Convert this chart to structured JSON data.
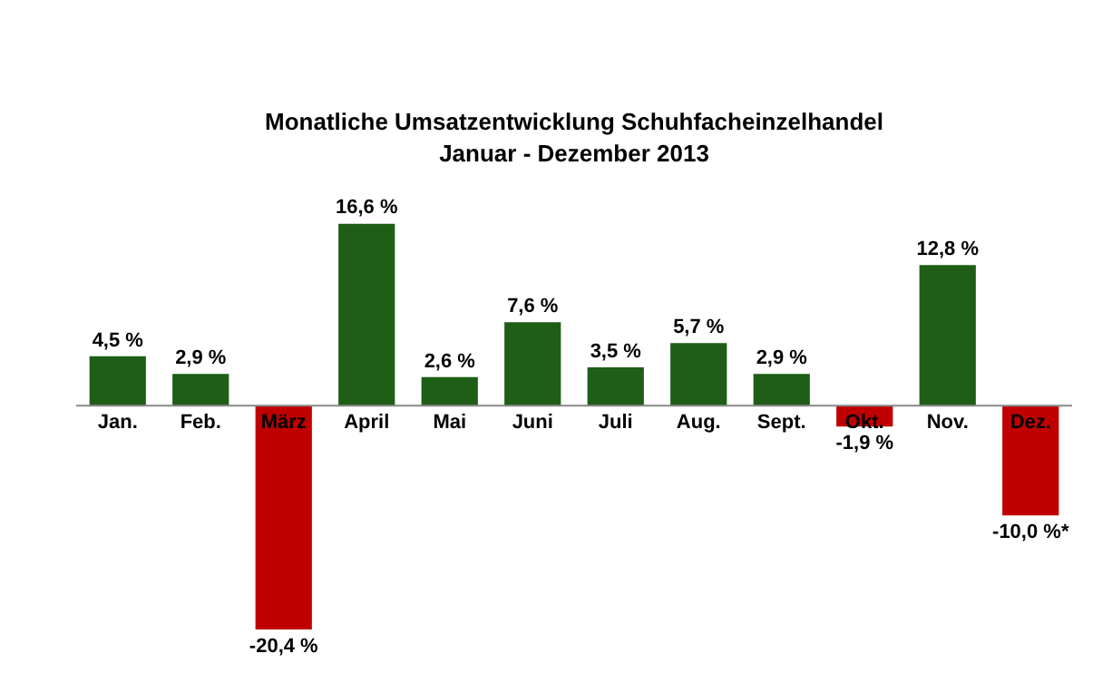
{
  "chart_data": {
    "type": "bar",
    "title": "Monatliche Umsatzentwicklung Schuhfacheinzelhandel",
    "subtitle": "Januar - Dezember 2013",
    "categories": [
      "Jan.",
      "Feb.",
      "März",
      "April",
      "Mai",
      "Juni",
      "Juli",
      "Aug.",
      "Sept.",
      "Okt.",
      "Nov.",
      "Dez."
    ],
    "values": [
      4.5,
      2.9,
      -20.4,
      16.6,
      2.6,
      7.6,
      3.5,
      5.7,
      2.9,
      -1.9,
      12.8,
      -10.0
    ],
    "colors": [
      "#1e5e16",
      "#1e5e16",
      "#c00000",
      "#1e5e16",
      "#1e5e16",
      "#1e5e16",
      "#1e5e16",
      "#1e5e16",
      "#1e5e16",
      "#c00000",
      "#1e5e16",
      "#c00000"
    ],
    "value_labels": [
      "4,5 %",
      "2,9 %",
      "-20,4 %",
      "16,6 %",
      "2,6 %",
      "7,6 %",
      "3,5 %",
      "5,7 %",
      "2,9 %",
      "-1,9 %",
      "12,8 %",
      "-10,0 %*"
    ],
    "legend": false
  }
}
